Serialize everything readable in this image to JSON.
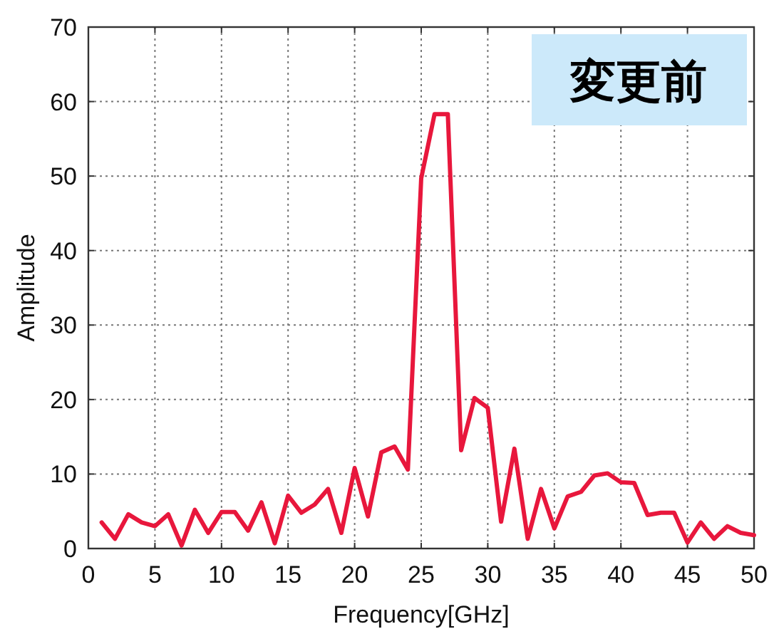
{
  "chart_data": {
    "type": "line",
    "xlabel": "Frequency[GHz]",
    "ylabel": "Amplitude",
    "annotations": [
      "変更前"
    ],
    "x": [
      1,
      2,
      3,
      4,
      5,
      6,
      7,
      8,
      9,
      10,
      11,
      12,
      13,
      14,
      15,
      16,
      17,
      18,
      19,
      20,
      21,
      22,
      23,
      24,
      25,
      26,
      27,
      28,
      29,
      30,
      31,
      32,
      33,
      34,
      35,
      36,
      37,
      38,
      39,
      40,
      41,
      42,
      43,
      44,
      45,
      46,
      47,
      48,
      49,
      50
    ],
    "values": [
      3.5,
      1.3,
      4.6,
      3.5,
      3.0,
      4.6,
      0.4,
      5.2,
      2.1,
      4.9,
      4.9,
      2.4,
      6.2,
      0.7,
      7.1,
      4.8,
      5.9,
      8.0,
      2.1,
      10.8,
      4.3,
      12.9,
      13.7,
      10.6,
      49.7,
      58.3,
      58.3,
      13.2,
      20.2,
      18.9,
      3.6,
      13.4,
      1.3,
      8.0,
      2.7,
      7.0,
      7.6,
      9.8,
      10.1,
      8.9,
      8.8,
      4.5,
      4.8,
      4.8,
      0.8,
      3.5,
      1.3,
      3.0,
      2.1,
      1.8
    ],
    "color": "#e8173c",
    "xlim": [
      0,
      50
    ],
    "ylim": [
      0,
      70
    ],
    "xticks": [
      0,
      5,
      10,
      15,
      20,
      25,
      30,
      35,
      40,
      45,
      50
    ],
    "yticks": [
      0,
      10,
      20,
      30,
      40,
      50,
      60,
      70
    ],
    "grid": true
  }
}
